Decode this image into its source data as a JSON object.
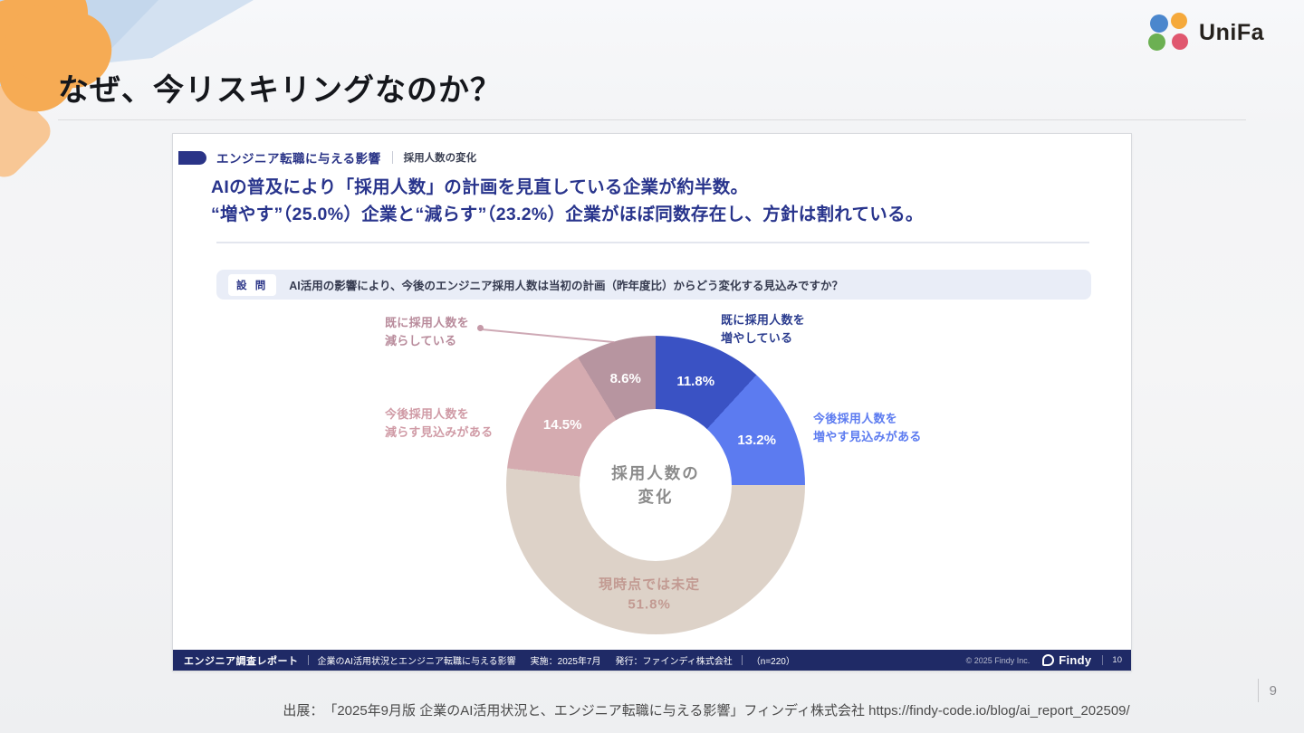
{
  "page": {
    "title": "なぜ、今リスキリングなのか？",
    "page_number": "9",
    "citation": "出展：　「2025年9月版 企業のAI活用状況と、エンジニア転職に与える影響」フィンディ株式会社 https://findy-code.io/blog/ai_report_202509/"
  },
  "logo": {
    "text": "UniFa"
  },
  "report_card": {
    "tag_title": "エンジニア転職に与える影響",
    "tag_subtitle": "採用人数の変化",
    "headline_line1": "AIの普及により「採用人数」の計画を見直している企業が約半数。",
    "headline_line2": "“増やす”（25.0%）企業と“減らす”（23.2%）企業がほぼ同数存在し、方針は割れている。",
    "question_label": "設 問",
    "question_text": "AI活用の影響により、今後のエンジニア採用人数は当初の計画（昨年度比）からどう変化する見込みですか？",
    "footer": {
      "left_bold": "エンジニア調査レポート",
      "left_text": "企業のAI活用状況とエンジニア転職に与える影響",
      "impl": "実施：2025年7月",
      "issuer": "発行：ファインディ株式会社",
      "n": "（n=220）",
      "copyright": "© 2025 Findy Inc.",
      "brand": "Findy",
      "page": "10"
    }
  },
  "chart_data": {
    "type": "pie",
    "donut": true,
    "title": "採用人数の変化",
    "center_text": "採用人数の\n変化",
    "unit": "%",
    "start_angle_deg": 0,
    "legend_position": "callouts",
    "slices": [
      {
        "name": "既に採用人数を増やしている",
        "value": 11.8,
        "color": "#3a52c4",
        "label_color": "#ffffff"
      },
      {
        "name": "今後採用人数を増やす見込みがある",
        "value": 13.2,
        "color": "#5c7bf0",
        "label_color": "#ffffff"
      },
      {
        "name": "現時点では未定",
        "value": 51.8,
        "color": "#ddd2c8",
        "label_color": "#c29a92",
        "inside_name": true
      },
      {
        "name": "今後採用人数を減らす見込みがある",
        "value": 14.5,
        "color": "#d5abb0",
        "label_color": "#ffffff"
      },
      {
        "name": "既に採用人数を減らしている",
        "value": 8.6,
        "color": "#b795a0",
        "label_color": "#ffffff"
      }
    ],
    "callouts": [
      {
        "text": "既に採用人数を\n増やしている",
        "color": "#2c3d8f"
      },
      {
        "text": "今後採用人数を\n増やす見込みがある",
        "color": "#5c7bf0"
      },
      {
        "text": "既に採用人数を\n減らしている",
        "color": "#b98c9c"
      },
      {
        "text": "今後採用人数を\n減らす見込みがある",
        "color": "#d09ba6"
      }
    ],
    "connector_color": "#c59aa8"
  }
}
